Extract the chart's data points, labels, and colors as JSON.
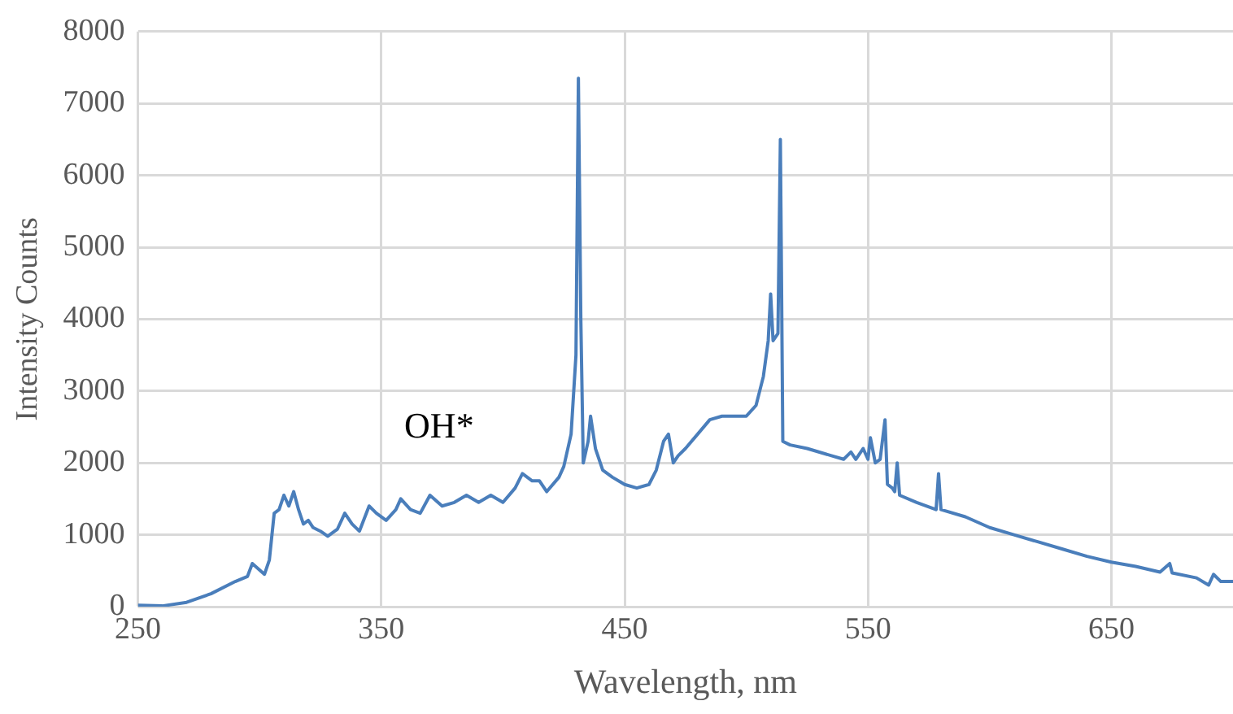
{
  "chart_data": {
    "type": "line",
    "xlabel": "Wavelength, nm",
    "ylabel": "Intensity Counts",
    "x": [
      250,
      260,
      270,
      280,
      290,
      295,
      297,
      302,
      304,
      306,
      308,
      310,
      312,
      314,
      316,
      318,
      320,
      322,
      325,
      328,
      332,
      335,
      338,
      341,
      345,
      348,
      352,
      356,
      358,
      362,
      366,
      370,
      375,
      380,
      385,
      390,
      395,
      400,
      405,
      408,
      412,
      415,
      418,
      423,
      425,
      428,
      430,
      431,
      432,
      433,
      435,
      436,
      438,
      441,
      445,
      450,
      455,
      460,
      463,
      466,
      468,
      470,
      472,
      475,
      480,
      485,
      490,
      495,
      500,
      504,
      507,
      509,
      510,
      511,
      513,
      514,
      515,
      518,
      525,
      535,
      540,
      543,
      545,
      548,
      550,
      551,
      553,
      555,
      557,
      558,
      560,
      561,
      562,
      563,
      570,
      578,
      579,
      580,
      590,
      600,
      610,
      620,
      630,
      640,
      650,
      660,
      670,
      674,
      675,
      685,
      690,
      692,
      695,
      700
    ],
    "series": [
      {
        "color": "#4a7ebb",
        "values": [
          20,
          10,
          60,
          180,
          350,
          420,
          600,
          450,
          650,
          1300,
          1350,
          1550,
          1400,
          1600,
          1350,
          1150,
          1200,
          1100,
          1050,
          980,
          1080,
          1300,
          1150,
          1050,
          1400,
          1300,
          1200,
          1350,
          1500,
          1350,
          1300,
          1550,
          1400,
          1450,
          1550,
          1450,
          1550,
          1450,
          1650,
          1850,
          1750,
          1750,
          1600,
          1800,
          1950,
          2400,
          3500,
          7350,
          4000,
          2000,
          2300,
          2650,
          2200,
          1900,
          1800,
          1700,
          1650,
          1700,
          1900,
          2300,
          2400,
          2000,
          2100,
          2200,
          2400,
          2600,
          2650,
          2650,
          2650,
          2800,
          3200,
          3700,
          4350,
          3700,
          3800,
          6500,
          2300,
          2250,
          2200,
          2100,
          2050,
          2150,
          2050,
          2200,
          2050,
          2350,
          2000,
          2050,
          2600,
          1700,
          1650,
          1600,
          2000,
          1550,
          1450,
          1350,
          1850,
          1350,
          1250,
          1100,
          1000,
          900,
          800,
          700,
          620,
          560,
          480,
          600,
          470,
          400,
          300,
          450,
          350,
          350
        ]
      }
    ],
    "xlim": [
      250,
      700
    ],
    "xticks": [
      250,
      350,
      450,
      550,
      650
    ],
    "ylim": [
      0,
      8000
    ],
    "yticks": [
      0,
      1000,
      2000,
      3000,
      4000,
      5000,
      6000,
      7000,
      8000
    ],
    "grid": true,
    "legend": false,
    "marker": "none",
    "line_style": "solid",
    "annotations": [
      "OH*"
    ]
  }
}
